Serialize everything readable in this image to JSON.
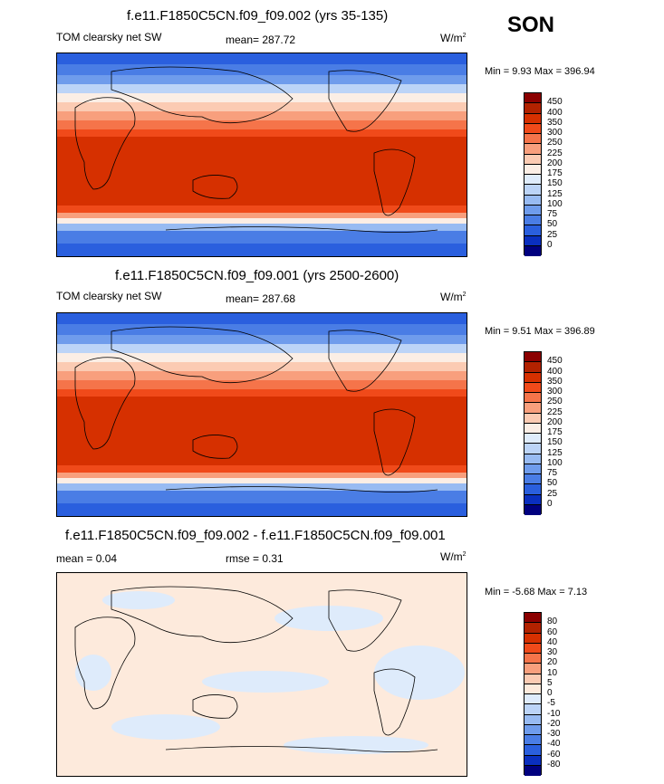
{
  "season": "SON",
  "panels": [
    {
      "title": "f.e11.F1850C5CN.f09_f09.002 (yrs 35-135)",
      "left_label": "TOM clearsky net SW",
      "mid_label": "mean= 287.72",
      "units": "W/m",
      "units_sup": "2",
      "minmax": "Min =   9.93 Max = 396.94",
      "levels": [
        "450",
        "400",
        "350",
        "300",
        "250",
        "225",
        "200",
        "175",
        "150",
        "125",
        "100",
        "75",
        "50",
        "25",
        "0"
      ],
      "colors": [
        "#8b0000",
        "#b22200",
        "#d63000",
        "#f04a1a",
        "#f5744a",
        "#f89f7d",
        "#fbcbb3",
        "#fbeee5",
        "#dfecfb",
        "#bcd4f7",
        "#98bbf2",
        "#6f9cec",
        "#4a7de5",
        "#2a5fde",
        "#0a2fbf",
        "#00007f"
      ]
    },
    {
      "title": "f.e11.F1850C5CN.f09_f09.001 (yrs 2500-2600)",
      "left_label": "TOM clearsky net SW",
      "mid_label": "mean= 287.68",
      "units": "W/m",
      "units_sup": "2",
      "minmax": "Min =   9.51 Max = 396.89",
      "levels": [
        "450",
        "400",
        "350",
        "300",
        "250",
        "225",
        "200",
        "175",
        "150",
        "125",
        "100",
        "75",
        "50",
        "25",
        "0"
      ],
      "colors": [
        "#8b0000",
        "#b22200",
        "#d63000",
        "#f04a1a",
        "#f5744a",
        "#f89f7d",
        "#fbcbb3",
        "#fbeee5",
        "#dfecfb",
        "#bcd4f7",
        "#98bbf2",
        "#6f9cec",
        "#4a7de5",
        "#2a5fde",
        "#0a2fbf",
        "#00007f"
      ]
    },
    {
      "title": "f.e11.F1850C5CN.f09_f09.002 - f.e11.F1850C5CN.f09_f09.001",
      "left_label": "mean =   0.04",
      "mid_label": "rmse =   0.31",
      "units": "W/m",
      "units_sup": "2",
      "minmax": "Min =  -5.68 Max =   7.13",
      "levels": [
        "80",
        "60",
        "40",
        "30",
        "20",
        "10",
        "5",
        "0",
        "-5",
        "-10",
        "-20",
        "-30",
        "-40",
        "-60",
        "-80"
      ],
      "colors": [
        "#8b0000",
        "#b22200",
        "#d63000",
        "#f04a1a",
        "#f5744a",
        "#f89f7d",
        "#fbcbb3",
        "#fdeadc",
        "#deebfb",
        "#bcd4f7",
        "#98bbf2",
        "#6f9cec",
        "#4a7de5",
        "#2a5fde",
        "#0a2fbf",
        "#00007f"
      ]
    }
  ]
}
